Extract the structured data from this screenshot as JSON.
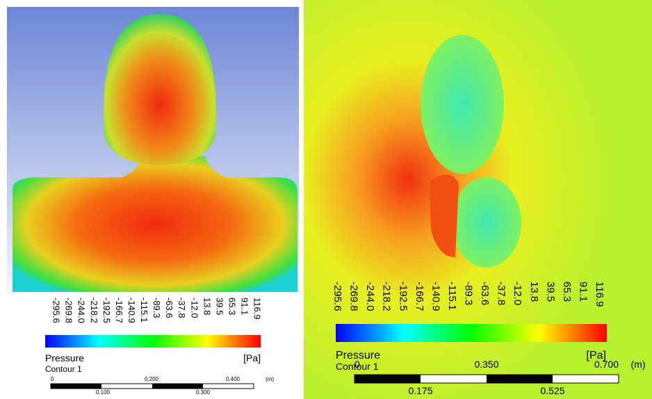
{
  "panels": [
    {
      "colorbar": {
        "ticks": [
          "-295.6",
          "-269.8",
          "-244.0",
          "-218.2",
          "-192.5",
          "-166.7",
          "-140.9",
          "-115.1",
          "-89.3",
          "-63.6",
          "-37.8",
          "-12.0",
          "13.8",
          "39.5",
          "65.3",
          "91.1",
          "116.9"
        ],
        "title": "Pressure",
        "unit": "[Pa]",
        "label": "Contour 1"
      },
      "scale": {
        "top": [
          "0",
          "0.200",
          "0.400"
        ],
        "unit": "(m)",
        "bottom": [
          "0.100",
          "0.300"
        ]
      }
    },
    {
      "colorbar": {
        "ticks": [
          "-295.6",
          "-269.8",
          "-244.0",
          "-218.2",
          "-192.5",
          "-166.7",
          "-140.9",
          "-115.1",
          "-89.3",
          "-63.6",
          "-37.8",
          "-12.0",
          "13.8",
          "39.5",
          "65.3",
          "91.1",
          "116.9"
        ],
        "title": "Pressure",
        "unit": "[Pa]",
        "label": "Contour 1"
      },
      "scale": {
        "top": [
          "0",
          "0.350",
          "0.700"
        ],
        "unit": "(m)",
        "bottom": [
          "0.175",
          "0.525"
        ]
      }
    }
  ]
}
